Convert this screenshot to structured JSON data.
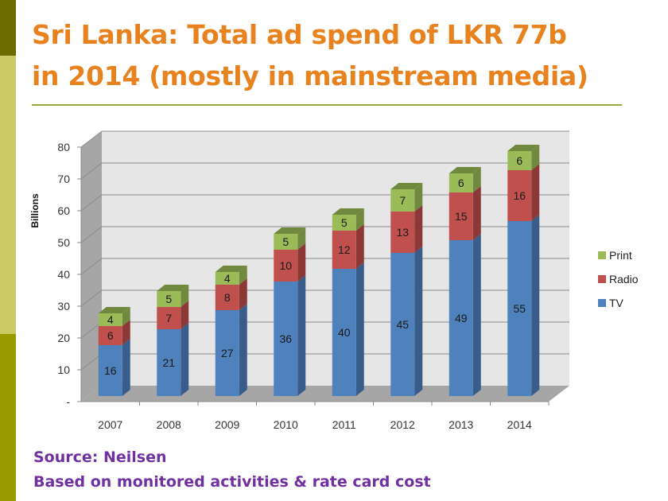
{
  "title_line1": "Sri Lanka: Total ad spend of LKR 77b",
  "title_line2": "in 2014 (mostly in mainstream media)",
  "source": "Source: Neilsen",
  "note": "Based on monitored activities & rate card cost",
  "colors": {
    "title": "#e8821e",
    "source": "#7030a0",
    "TV": "#4f81bd",
    "Radio": "#c0504d",
    "Print": "#9bbb59"
  },
  "chart_data": {
    "type": "bar",
    "stacked": true,
    "three_d": true,
    "categories": [
      "2007",
      "2008",
      "2009",
      "2010",
      "2011",
      "2012",
      "2013",
      "2014"
    ],
    "series": [
      {
        "name": "TV",
        "values": [
          16,
          21,
          27,
          36,
          40,
          45,
          49,
          55
        ]
      },
      {
        "name": "Radio",
        "values": [
          6,
          7,
          8,
          10,
          12,
          13,
          15,
          16
        ]
      },
      {
        "name": "Print",
        "values": [
          4,
          5,
          4,
          5,
          5,
          7,
          6,
          6
        ]
      }
    ],
    "ylabel": "Billions",
    "ylim": [
      0,
      80
    ],
    "yticks": [
      "-",
      "10",
      "20",
      "30",
      "40",
      "50",
      "60",
      "70",
      "80"
    ],
    "grid": true,
    "legend": "right"
  }
}
